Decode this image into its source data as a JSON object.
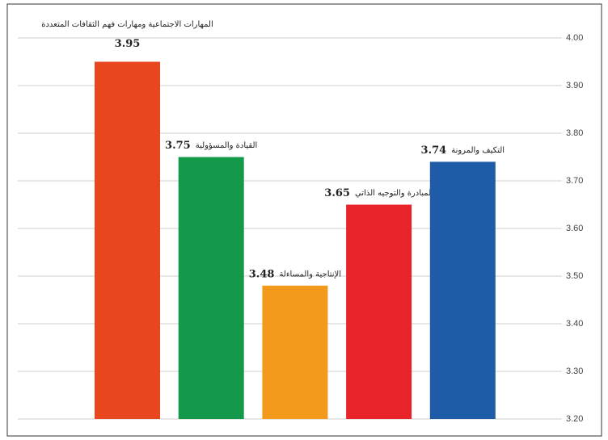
{
  "chart_data": {
    "type": "bar",
    "categories": [
      "المهارات الاجتماعية ومهارات فهم الثقافات المتعددة",
      "القيادة والمسؤولية",
      "الإنتاجية والمساءلة",
      "المبادرة والتوجيه الذاتي",
      "التكيف والمرونة"
    ],
    "values": [
      3.95,
      3.75,
      3.48,
      3.65,
      3.74
    ],
    "colors": [
      "#e8461f",
      "#14994a",
      "#f39a1c",
      "#e8242a",
      "#1e5ca8"
    ],
    "ylim": [
      3.2,
      4.0
    ],
    "yticks": [
      {
        "value": 3.2,
        "label": "3.20"
      },
      {
        "value": 3.3,
        "label": "3.30"
      },
      {
        "value": 3.4,
        "label": "3.40"
      },
      {
        "value": 3.5,
        "label": "3.50"
      },
      {
        "value": 3.6,
        "label": "3.60"
      },
      {
        "value": 3.7,
        "label": "3.70"
      },
      {
        "value": 3.8,
        "label": "3.80"
      },
      {
        "value": 3.9,
        "label": "3.90"
      },
      {
        "value": 4.0,
        "label": "4.00"
      }
    ],
    "grid": true
  }
}
